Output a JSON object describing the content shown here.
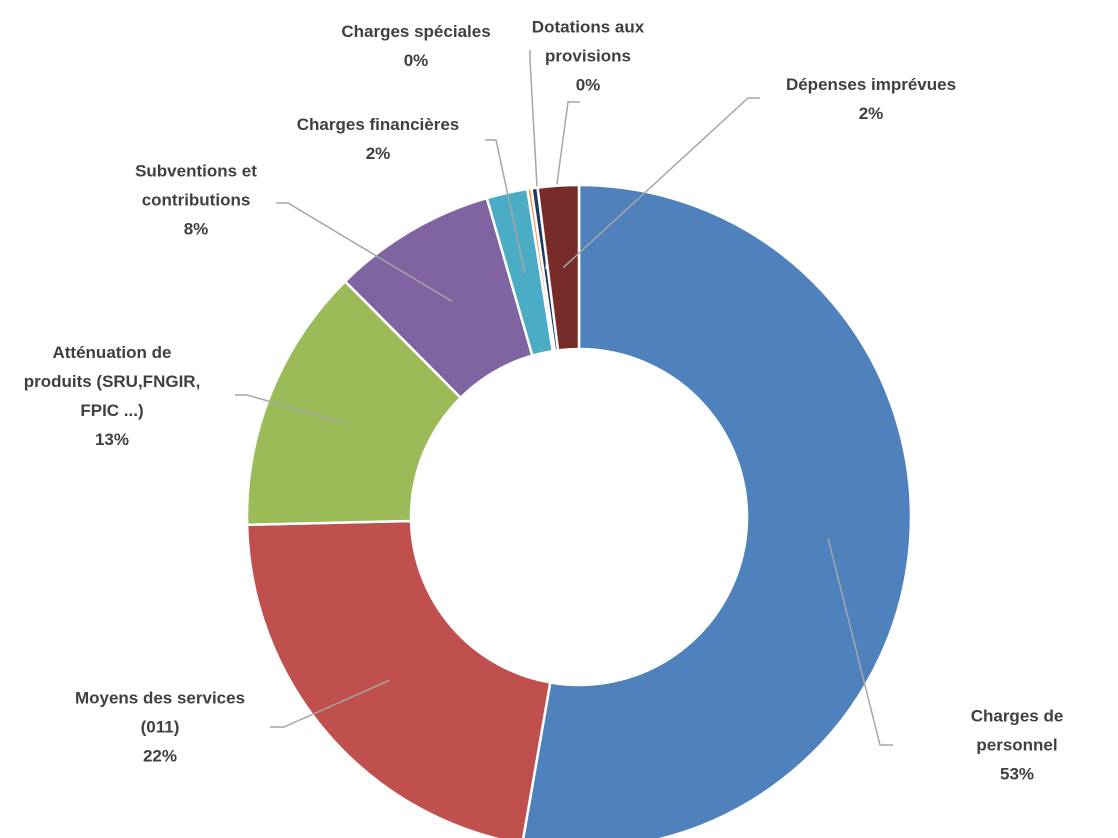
{
  "chart_data": {
    "type": "donut",
    "categories": [
      "Charges de personnel",
      "Moyens des services\n(011)",
      "Atténuation de\nproduits (SRU,FNGIR,\nFPIC ...)",
      "Subventions et\ncontributions",
      "Charges financières",
      "Charges spéciales",
      "Dotations aux\nprovisions",
      "Dépenses imprévues"
    ],
    "values": [
      53,
      22,
      13,
      8,
      2,
      0.2,
      0.3,
      2
    ],
    "value_labels": [
      "53%",
      "22%",
      "13%",
      "8%",
      "2%",
      "0%",
      "0%",
      "2%"
    ],
    "colors": [
      "#4f81bd",
      "#c0504d",
      "#9bbb59",
      "#8064a2",
      "#4bacc6",
      "#f79646",
      "#1f3864",
      "#772c2a"
    ]
  }
}
